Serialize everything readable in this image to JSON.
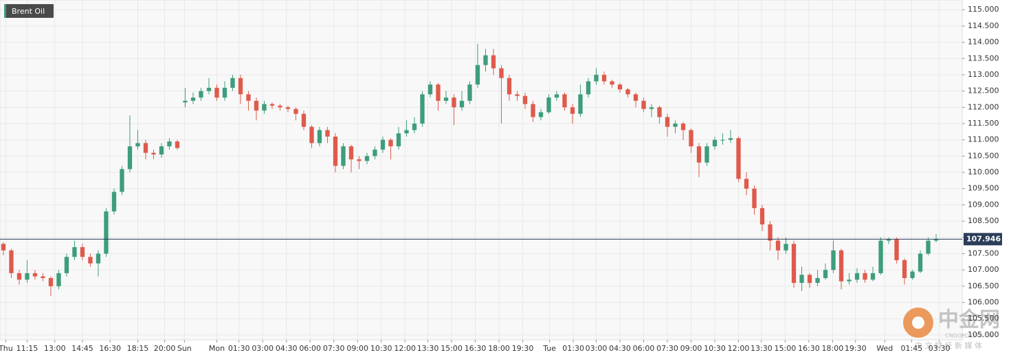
{
  "chart_data": {
    "type": "candlestick",
    "title": "Brent Oil",
    "series": [
      {
        "up_color": "#3d9d7c",
        "down_color": "#df5a4b",
        "open": [
          107.8,
          107.6,
          106.9,
          106.7,
          106.9,
          106.8,
          106.75,
          106.5,
          106.9,
          107.4,
          107.7,
          107.4,
          107.2,
          107.5,
          108.8,
          109.4,
          110.1,
          110.8,
          110.9,
          110.6,
          110.55,
          110.8,
          110.95,
          112.15,
          112.2,
          112.3,
          112.5,
          112.6,
          112.3,
          112.6,
          112.9,
          112.4,
          112.2,
          111.9,
          112.1,
          112.05,
          112.0,
          111.95,
          111.8,
          111.4,
          110.9,
          111.3,
          111.1,
          110.2,
          110.8,
          110.4,
          110.35,
          110.5,
          110.7,
          111.0,
          110.8,
          111.2,
          111.3,
          111.5,
          112.4,
          112.7,
          112.2,
          112.3,
          112.0,
          112.2,
          112.7,
          113.3,
          113.6,
          113.2,
          112.9,
          112.4,
          112.35,
          112.1,
          111.7,
          111.85,
          112.3,
          112.4,
          112.0,
          111.8,
          112.4,
          112.8,
          113.0,
          112.8,
          112.7,
          112.55,
          112.4,
          112.2,
          111.95,
          112.0,
          111.7,
          111.4,
          111.5,
          111.3,
          110.8,
          110.3,
          110.8,
          111.0,
          111.0,
          111.05,
          109.8,
          109.5,
          108.9,
          108.4,
          107.9,
          107.6,
          107.8,
          106.6,
          106.85,
          106.6,
          106.75,
          107.0,
          107.6,
          106.65,
          106.7,
          106.9,
          106.7,
          106.9,
          107.9,
          107.95,
          107.3,
          106.75,
          106.95,
          107.5,
          107.9
        ],
        "high": [
          107.85,
          107.65,
          107.0,
          107.3,
          107.0,
          106.9,
          106.8,
          107.0,
          107.5,
          107.9,
          107.8,
          107.5,
          107.6,
          108.9,
          109.5,
          110.2,
          111.75,
          111.3,
          111.0,
          110.7,
          110.9,
          111.05,
          111.0,
          112.6,
          112.45,
          112.6,
          112.9,
          112.7,
          112.8,
          113.0,
          113.0,
          112.5,
          112.3,
          112.2,
          112.15,
          112.1,
          112.05,
          112.0,
          111.9,
          111.45,
          111.4,
          111.4,
          111.2,
          110.9,
          110.85,
          110.5,
          110.6,
          110.8,
          111.1,
          111.05,
          111.4,
          111.6,
          111.7,
          112.5,
          112.8,
          112.75,
          112.5,
          112.4,
          112.5,
          112.8,
          113.95,
          113.8,
          113.8,
          113.3,
          113.0,
          112.5,
          112.45,
          112.2,
          111.95,
          112.4,
          112.5,
          112.45,
          112.1,
          112.7,
          112.9,
          113.2,
          113.1,
          112.85,
          112.75,
          112.6,
          112.45,
          112.3,
          112.1,
          112.05,
          111.8,
          111.6,
          111.55,
          111.35,
          110.9,
          110.9,
          111.1,
          111.2,
          111.3,
          111.1,
          110.0,
          109.6,
          109.0,
          108.5,
          108.0,
          108.0,
          107.9,
          107.1,
          106.9,
          107.0,
          107.2,
          107.9,
          107.65,
          106.9,
          107.05,
          107.0,
          107.1,
          108.0,
          108.0,
          108.0,
          107.35,
          107.0,
          107.6,
          108.0,
          108.1
        ],
        "low": [
          107.45,
          106.75,
          106.55,
          106.6,
          106.7,
          106.65,
          106.2,
          106.4,
          106.8,
          107.3,
          107.3,
          107.1,
          106.8,
          107.4,
          108.7,
          109.3,
          110.0,
          110.7,
          110.4,
          110.4,
          110.45,
          110.7,
          110.7,
          112.0,
          112.1,
          112.2,
          112.4,
          112.2,
          112.2,
          112.5,
          112.1,
          111.9,
          111.6,
          111.8,
          111.95,
          111.9,
          111.85,
          111.6,
          111.3,
          110.75,
          110.8,
          110.9,
          110.0,
          110.1,
          110.0,
          110.1,
          110.25,
          110.4,
          110.6,
          110.4,
          110.7,
          111.1,
          111.2,
          111.4,
          112.3,
          111.9,
          112.1,
          111.45,
          111.9,
          112.1,
          112.6,
          113.1,
          113.0,
          111.5,
          112.2,
          112.2,
          111.95,
          111.55,
          111.6,
          111.8,
          112.2,
          111.9,
          111.5,
          111.7,
          112.3,
          112.7,
          112.7,
          112.6,
          112.45,
          112.3,
          112.0,
          111.85,
          111.7,
          111.5,
          111.1,
          111.2,
          111.0,
          110.6,
          109.85,
          110.2,
          110.7,
          110.85,
          110.9,
          109.7,
          109.3,
          108.7,
          108.2,
          107.6,
          107.3,
          107.5,
          106.45,
          106.35,
          106.45,
          106.5,
          106.7,
          106.9,
          106.4,
          106.55,
          106.6,
          106.6,
          106.65,
          106.85,
          107.8,
          107.2,
          106.55,
          106.7,
          106.9,
          107.45,
          107.85
        ],
        "close": [
          107.6,
          106.9,
          106.7,
          106.9,
          106.8,
          106.75,
          106.5,
          106.9,
          107.4,
          107.7,
          107.4,
          107.2,
          107.5,
          108.8,
          109.4,
          110.1,
          110.8,
          110.9,
          110.6,
          110.55,
          110.8,
          110.95,
          110.75,
          112.2,
          112.3,
          112.5,
          112.6,
          112.3,
          112.6,
          112.9,
          112.4,
          112.2,
          111.9,
          112.1,
          112.05,
          112.0,
          111.95,
          111.8,
          111.4,
          110.9,
          111.3,
          111.1,
          110.2,
          110.8,
          110.4,
          110.35,
          110.5,
          110.7,
          111.0,
          110.8,
          111.2,
          111.3,
          111.5,
          112.4,
          112.7,
          112.2,
          112.3,
          112.0,
          112.2,
          112.7,
          113.3,
          113.6,
          113.2,
          112.9,
          112.4,
          112.35,
          112.1,
          111.7,
          111.85,
          112.3,
          112.4,
          112.0,
          111.8,
          112.4,
          112.8,
          113.0,
          112.8,
          112.7,
          112.55,
          112.4,
          112.2,
          111.95,
          112.0,
          111.7,
          111.4,
          111.5,
          111.3,
          110.8,
          110.3,
          110.8,
          111.0,
          111.0,
          111.05,
          109.8,
          109.5,
          108.9,
          108.4,
          107.9,
          107.6,
          107.8,
          106.6,
          106.85,
          106.6,
          106.75,
          107.0,
          107.6,
          106.65,
          106.7,
          106.9,
          106.7,
          106.9,
          107.9,
          107.95,
          107.3,
          106.75,
          106.95,
          107.5,
          107.9,
          107.95
        ]
      }
    ],
    "current_price": {
      "value": 107.946,
      "label": "107.946",
      "color": "#2b3d59"
    },
    "xlim": [
      -0.43,
      121.3
    ],
    "xticks": [
      {
        "value": 0.3,
        "label": "Thu"
      },
      {
        "value": 3.0,
        "label": "11:15"
      },
      {
        "value": 6.5,
        "label": "13:00"
      },
      {
        "value": 10.0,
        "label": "14:45"
      },
      {
        "value": 13.5,
        "label": "16:30"
      },
      {
        "value": 17.0,
        "label": "18:15"
      },
      {
        "value": 20.4,
        "label": "20:00"
      },
      {
        "value": 22.9,
        "label": "Sun"
      },
      {
        "value": 27.0,
        "label": "Mon"
      },
      {
        "value": 29.8,
        "label": "01:30"
      },
      {
        "value": 32.8,
        "label": "03:00"
      },
      {
        "value": 35.8,
        "label": "04:30"
      },
      {
        "value": 38.8,
        "label": "06:00"
      },
      {
        "value": 41.8,
        "label": "07:30"
      },
      {
        "value": 44.8,
        "label": "09:00"
      },
      {
        "value": 47.8,
        "label": "10:30"
      },
      {
        "value": 50.8,
        "label": "12:00"
      },
      {
        "value": 53.7,
        "label": "13:30"
      },
      {
        "value": 56.7,
        "label": "15:00"
      },
      {
        "value": 59.7,
        "label": "16:30"
      },
      {
        "value": 62.7,
        "label": "18:00"
      },
      {
        "value": 65.7,
        "label": "19:30"
      },
      {
        "value": 69.1,
        "label": "Tue"
      },
      {
        "value": 72.1,
        "label": "01:30"
      },
      {
        "value": 75.0,
        "label": "03:00"
      },
      {
        "value": 78.0,
        "label": "04:30"
      },
      {
        "value": 81.0,
        "label": "06:00"
      },
      {
        "value": 84.0,
        "label": "07:30"
      },
      {
        "value": 87.0,
        "label": "09:00"
      },
      {
        "value": 90.0,
        "label": "10:30"
      },
      {
        "value": 93.0,
        "label": "12:00"
      },
      {
        "value": 95.9,
        "label": "13:30"
      },
      {
        "value": 98.9,
        "label": "15:00"
      },
      {
        "value": 101.9,
        "label": "16:30"
      },
      {
        "value": 104.9,
        "label": "18:00"
      },
      {
        "value": 107.8,
        "label": "19:30"
      },
      {
        "value": 111.5,
        "label": "Wed"
      },
      {
        "value": 114.9,
        "label": "01:45"
      },
      {
        "value": 118.4,
        "label": "03:30"
      }
    ],
    "ylim": [
      104.85,
      115.3
    ],
    "yticks": [
      {
        "value": 105,
        "label": "105.000"
      },
      {
        "value": 105.5,
        "label": "105.500"
      },
      {
        "value": 106,
        "label": "106.000"
      },
      {
        "value": 106.5,
        "label": "106.500"
      },
      {
        "value": 107,
        "label": "107.000"
      },
      {
        "value": 107.5,
        "label": "107.500"
      },
      {
        "value": 108,
        "label": "108.000"
      },
      {
        "value": 108.5,
        "label": "108.500"
      },
      {
        "value": 109,
        "label": "109.000"
      },
      {
        "value": 109.5,
        "label": "109.500"
      },
      {
        "value": 110,
        "label": "110.000"
      },
      {
        "value": 110.5,
        "label": "110.500"
      },
      {
        "value": 111,
        "label": "111.000"
      },
      {
        "value": 111.5,
        "label": "111.500"
      },
      {
        "value": 112,
        "label": "112.000"
      },
      {
        "value": 112.5,
        "label": "112.500"
      },
      {
        "value": 113,
        "label": "113.000"
      },
      {
        "value": 113.5,
        "label": "113.500"
      },
      {
        "value": 114,
        "label": "114.000"
      },
      {
        "value": 114.5,
        "label": "114.500"
      },
      {
        "value": 115,
        "label": "115.000"
      }
    ],
    "grid": true
  },
  "watermark": {
    "name": "中金网",
    "site": "CNGOLD.ORG.CN",
    "slogan": "中 文 财 经 新 媒 体"
  }
}
